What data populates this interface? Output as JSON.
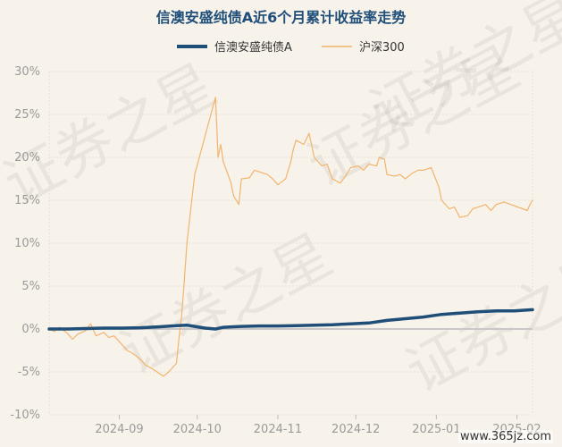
{
  "chart_data": {
    "type": "line",
    "title": "信澳安盛纯债A近6个月累计收益率走势",
    "y_ticks": [
      "30%",
      "25%",
      "20%",
      "15%",
      "10%",
      "5%",
      "0%",
      "-5%",
      "-10%"
    ],
    "ylim": [
      -10,
      30
    ],
    "x_ticks": [
      "2024-09",
      "2024-10",
      "2024-11",
      "2024-12",
      "2025-01",
      "2025-02"
    ],
    "xlim": [
      "2024-08-05",
      "2025-02-07"
    ],
    "legend_position": "top-center",
    "grid": true,
    "watermark": [
      "证券之星"
    ],
    "series": [
      {
        "name": "信澳安盛纯债A",
        "color": "#1f4e79",
        "points": [
          [
            "2024-08-05",
            0.0
          ],
          [
            "2024-08-12",
            0.0
          ],
          [
            "2024-08-19",
            0.05
          ],
          [
            "2024-08-26",
            0.1
          ],
          [
            "2024-09-02",
            0.1
          ],
          [
            "2024-09-09",
            0.15
          ],
          [
            "2024-09-16",
            0.25
          ],
          [
            "2024-09-23",
            0.4
          ],
          [
            "2024-09-27",
            0.45
          ],
          [
            "2024-09-30",
            0.3
          ],
          [
            "2024-10-04",
            0.1
          ],
          [
            "2024-10-08",
            0.0
          ],
          [
            "2024-10-11",
            0.2
          ],
          [
            "2024-10-18",
            0.3
          ],
          [
            "2024-10-25",
            0.35
          ],
          [
            "2024-11-01",
            0.35
          ],
          [
            "2024-11-08",
            0.4
          ],
          [
            "2024-11-15",
            0.45
          ],
          [
            "2024-11-22",
            0.5
          ],
          [
            "2024-11-29",
            0.6
          ],
          [
            "2024-12-06",
            0.7
          ],
          [
            "2024-12-13",
            1.0
          ],
          [
            "2024-12-20",
            1.2
          ],
          [
            "2024-12-27",
            1.4
          ],
          [
            "2025-01-03",
            1.7
          ],
          [
            "2025-01-10",
            1.85
          ],
          [
            "2025-01-17",
            2.0
          ],
          [
            "2025-01-24",
            2.1
          ],
          [
            "2025-01-31",
            2.1
          ],
          [
            "2025-02-07",
            2.25
          ]
        ]
      },
      {
        "name": "沪深300",
        "color": "#f2b46e",
        "points": [
          [
            "2024-08-05",
            0.0
          ],
          [
            "2024-08-07",
            -0.3
          ],
          [
            "2024-08-09",
            0.2
          ],
          [
            "2024-08-12",
            -0.5
          ],
          [
            "2024-08-14",
            -1.2
          ],
          [
            "2024-08-16",
            -0.6
          ],
          [
            "2024-08-19",
            -0.2
          ],
          [
            "2024-08-21",
            0.6
          ],
          [
            "2024-08-23",
            -0.8
          ],
          [
            "2024-08-26",
            -0.4
          ],
          [
            "2024-08-28",
            -1.0
          ],
          [
            "2024-08-30",
            -0.8
          ],
          [
            "2024-09-02",
            -1.8
          ],
          [
            "2024-09-04",
            -2.5
          ],
          [
            "2024-09-06",
            -2.8
          ],
          [
            "2024-09-09",
            -3.5
          ],
          [
            "2024-09-11",
            -4.2
          ],
          [
            "2024-09-13",
            -4.5
          ],
          [
            "2024-09-18",
            -5.5
          ],
          [
            "2024-09-20",
            -5.0
          ],
          [
            "2024-09-23",
            -4.0
          ],
          [
            "2024-09-24",
            -1.0
          ],
          [
            "2024-09-25",
            1.5
          ],
          [
            "2024-09-26",
            5.5
          ],
          [
            "2024-09-27",
            10.0
          ],
          [
            "2024-09-30",
            18.0
          ],
          [
            "2024-10-08",
            27.0
          ],
          [
            "2024-10-09",
            20.0
          ],
          [
            "2024-10-10",
            21.5
          ],
          [
            "2024-10-11",
            19.5
          ],
          [
            "2024-10-14",
            17.0
          ],
          [
            "2024-10-15",
            15.5
          ],
          [
            "2024-10-17",
            14.5
          ],
          [
            "2024-10-18",
            17.5
          ],
          [
            "2024-10-21",
            17.6
          ],
          [
            "2024-10-23",
            18.5
          ],
          [
            "2024-10-25",
            18.3
          ],
          [
            "2024-10-28",
            18.0
          ],
          [
            "2024-10-30",
            17.5
          ],
          [
            "2024-11-01",
            16.8
          ],
          [
            "2024-11-04",
            17.5
          ],
          [
            "2024-11-06",
            19.5
          ],
          [
            "2024-11-07",
            21.0
          ],
          [
            "2024-11-08",
            22.0
          ],
          [
            "2024-11-11",
            21.5
          ],
          [
            "2024-11-13",
            22.8
          ],
          [
            "2024-11-15",
            20.0
          ],
          [
            "2024-11-18",
            19.0
          ],
          [
            "2024-11-20",
            19.2
          ],
          [
            "2024-11-22",
            17.5
          ],
          [
            "2024-11-25",
            17.0
          ],
          [
            "2024-11-27",
            17.8
          ],
          [
            "2024-11-29",
            18.8
          ],
          [
            "2024-12-02",
            19.0
          ],
          [
            "2024-12-04",
            18.5
          ],
          [
            "2024-12-06",
            19.2
          ],
          [
            "2024-12-09",
            19.0
          ],
          [
            "2024-12-10",
            20.0
          ],
          [
            "2024-12-12",
            19.8
          ],
          [
            "2024-12-13",
            18.0
          ],
          [
            "2024-12-16",
            17.8
          ],
          [
            "2024-12-18",
            18.0
          ],
          [
            "2024-12-20",
            17.5
          ],
          [
            "2024-12-23",
            18.2
          ],
          [
            "2024-12-25",
            18.5
          ],
          [
            "2024-12-27",
            18.5
          ],
          [
            "2024-12-30",
            18.8
          ],
          [
            "2025-01-02",
            16.5
          ],
          [
            "2025-01-03",
            15.0
          ],
          [
            "2025-01-06",
            14.0
          ],
          [
            "2025-01-08",
            14.2
          ],
          [
            "2025-01-10",
            13.0
          ],
          [
            "2025-01-13",
            13.2
          ],
          [
            "2025-01-15",
            14.0
          ],
          [
            "2025-01-17",
            14.2
          ],
          [
            "2025-01-20",
            14.5
          ],
          [
            "2025-01-22",
            13.8
          ],
          [
            "2025-01-24",
            14.5
          ],
          [
            "2025-01-27",
            14.8
          ],
          [
            "2025-02-05",
            13.8
          ],
          [
            "2025-02-06",
            14.5
          ],
          [
            "2025-02-07",
            15.0
          ]
        ]
      }
    ]
  },
  "credit": "www.365jz.com"
}
